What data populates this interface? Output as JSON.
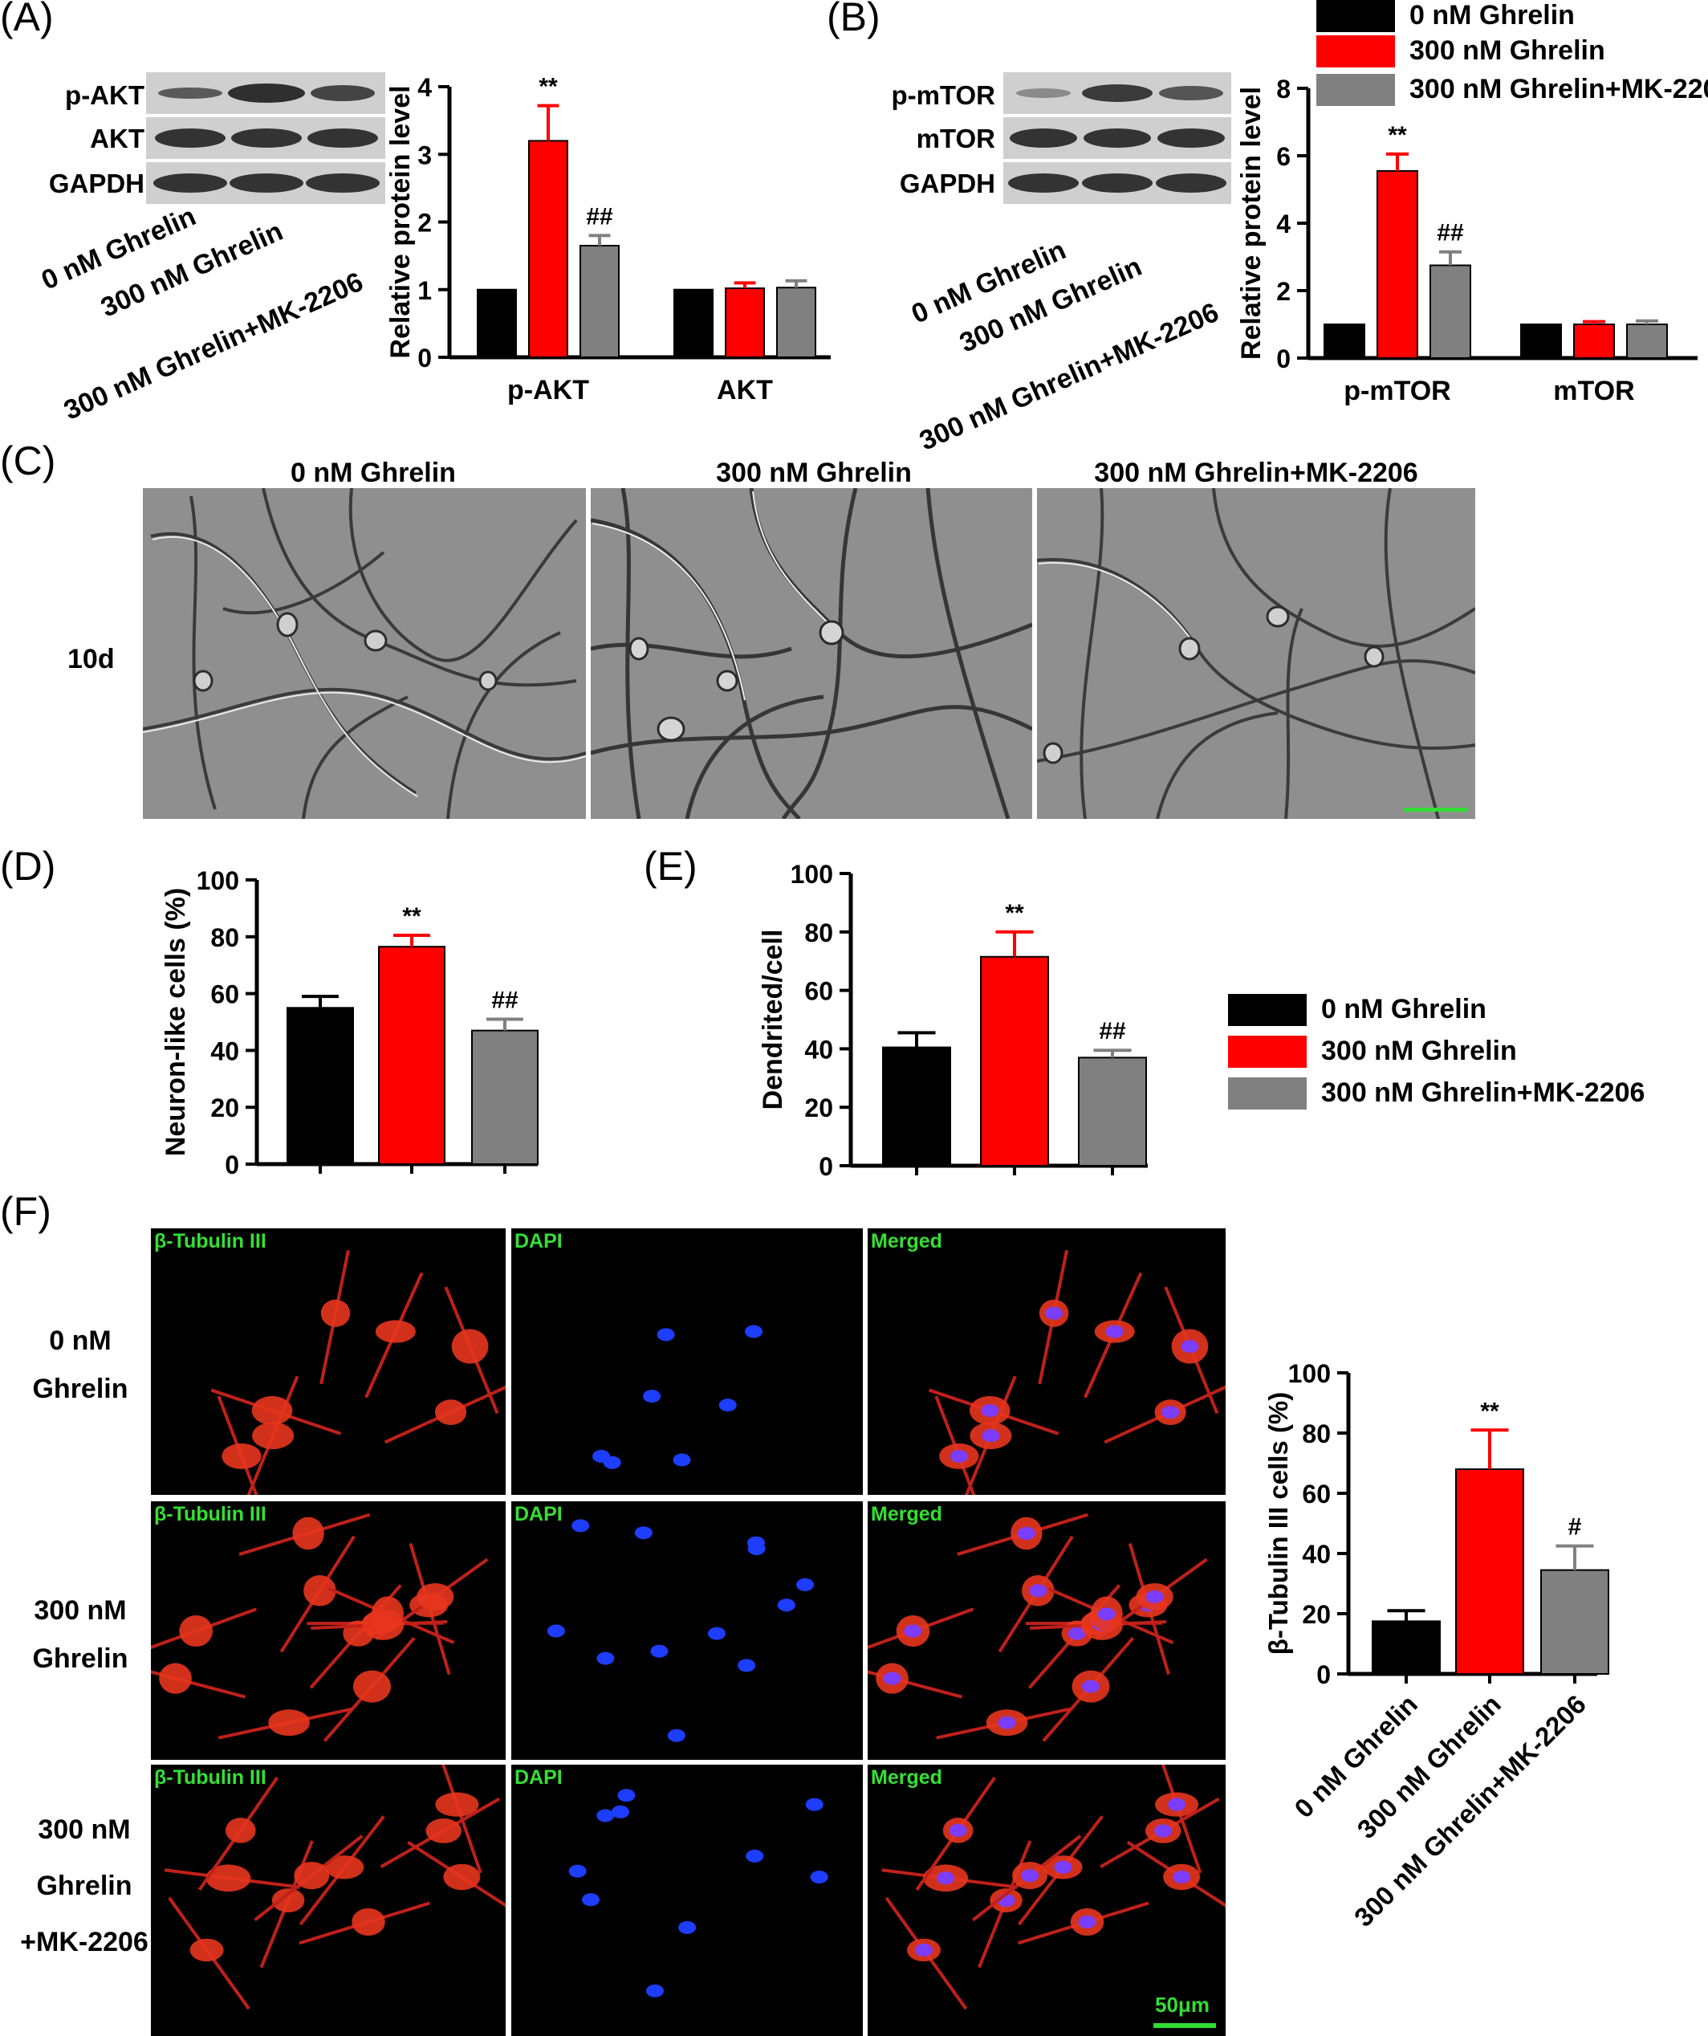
{
  "panels": {
    "A": "(A)",
    "B": "(B)",
    "C": "(C)",
    "D": "(D)",
    "E": "(E)",
    "F": "(F)"
  },
  "conditions": [
    "0 nM Ghrelin",
    "300 nM Ghrelin",
    "300 nM Ghrelin+MK-2206"
  ],
  "colors": {
    "ctrl": "#000000",
    "ghrelin": "#ff0000",
    "mk": "#808080",
    "scale_bar": "#33dd33"
  },
  "blotA": {
    "labels": [
      "p-AKT",
      "AKT",
      "GAPDH"
    ]
  },
  "blotB": {
    "labels": [
      "p-mTOR",
      "mTOR",
      "GAPDH"
    ]
  },
  "panelC": {
    "row_label": "10d"
  },
  "panelF": {
    "column_labels": [
      "β-Tubulin III",
      "DAPI",
      "Merged"
    ],
    "row_labels": [
      {
        "line1": "0 nM",
        "line2": "Ghrelin",
        "line3": ""
      },
      {
        "line1": "300 nM",
        "line2": "Ghrelin",
        "line3": ""
      },
      {
        "line1": "300 nM",
        "line2": "Ghrelin",
        "line3": "+MK-2206"
      }
    ],
    "scale_label": "50μm"
  },
  "legend": [
    "0 nM Ghrelin",
    "300 nM Ghrelin",
    "300 nM Ghrelin+MK-2206"
  ],
  "chart_data": [
    {
      "id": "A",
      "type": "bar",
      "ylabel": "Relative protein level",
      "ylim": [
        0,
        4
      ],
      "yticks": [
        0,
        1,
        2,
        3,
        4
      ],
      "groups": [
        "p-AKT",
        "AKT"
      ],
      "series": [
        {
          "name": "0 nM Ghrelin",
          "values": [
            1.0,
            1.0
          ],
          "errors": [
            0,
            0
          ],
          "marks": [
            "",
            ""
          ]
        },
        {
          "name": "300 nM Ghrelin",
          "values": [
            3.2,
            1.02
          ],
          "errors": [
            0.52,
            0.08
          ],
          "marks": [
            "**",
            ""
          ]
        },
        {
          "name": "300 nM Ghrelin+MK-2206",
          "values": [
            1.65,
            1.03
          ],
          "errors": [
            0.15,
            0.1
          ],
          "marks": [
            "##",
            ""
          ]
        }
      ]
    },
    {
      "id": "B",
      "type": "bar",
      "ylabel": "Relative protein level",
      "ylim": [
        0,
        8
      ],
      "yticks": [
        0,
        2,
        4,
        6,
        8
      ],
      "groups": [
        "p-mTOR",
        "mTOR"
      ],
      "series": [
        {
          "name": "0 nM Ghrelin",
          "values": [
            1.0,
            1.0
          ],
          "errors": [
            0,
            0
          ],
          "marks": [
            "",
            ""
          ]
        },
        {
          "name": "300 nM Ghrelin",
          "values": [
            5.55,
            1.0
          ],
          "errors": [
            0.5,
            0.08
          ],
          "marks": [
            "**",
            ""
          ]
        },
        {
          "name": "300 nM Ghrelin+MK-2206",
          "values": [
            2.75,
            1.0
          ],
          "errors": [
            0.4,
            0.1
          ],
          "marks": [
            "##",
            ""
          ]
        }
      ]
    },
    {
      "id": "D",
      "type": "bar",
      "ylabel": "Neuron-like cells (%)",
      "ylim": [
        0,
        100
      ],
      "yticks": [
        0,
        20,
        40,
        60,
        80,
        100
      ],
      "categories": [
        "0 nM Ghrelin",
        "300 nM Ghrelin",
        "300 nM Ghrelin+MK-2206"
      ],
      "values": [
        55,
        76.5,
        47
      ],
      "errors": [
        4,
        4,
        4
      ],
      "marks": [
        "",
        "**",
        "##"
      ]
    },
    {
      "id": "E",
      "type": "bar",
      "ylabel": "Dendrited/cell",
      "ylim": [
        0,
        100
      ],
      "yticks": [
        0,
        20,
        40,
        60,
        80,
        100
      ],
      "categories": [
        "0 nM Ghrelin",
        "300 nM Ghrelin",
        "300 nM Ghrelin+MK-2206"
      ],
      "values": [
        40.5,
        71.5,
        37
      ],
      "errors": [
        5,
        8.5,
        2.5
      ],
      "marks": [
        "",
        "**",
        "##"
      ]
    },
    {
      "id": "F",
      "type": "bar",
      "ylabel": "β-Tubulin III cells (%)",
      "ylim": [
        0,
        100
      ],
      "yticks": [
        0,
        20,
        40,
        60,
        80,
        100
      ],
      "categories": [
        "0 nM Ghrelin",
        "300 nM Ghrelin",
        "300 nM Ghrelin+MK-2206"
      ],
      "values": [
        17.5,
        68,
        34.5
      ],
      "errors": [
        3.5,
        13,
        8
      ],
      "marks": [
        "",
        "**",
        "#"
      ]
    }
  ]
}
